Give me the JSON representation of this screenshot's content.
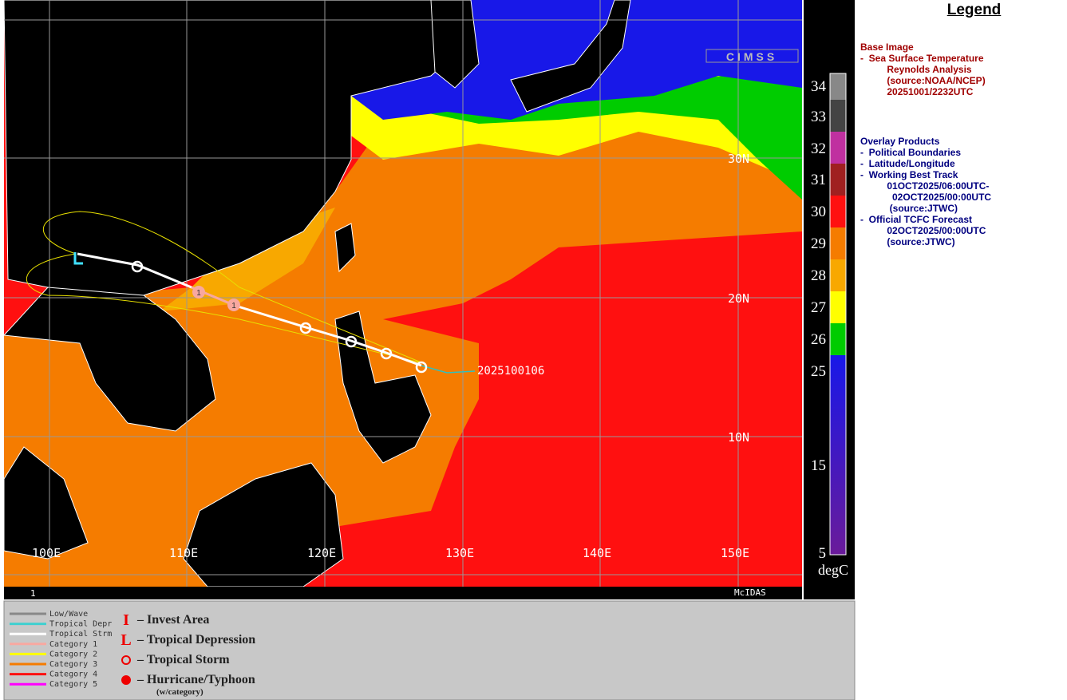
{
  "map": {
    "lat_labels": [
      "30N",
      "20N",
      "10N"
    ],
    "lon_labels": [
      "100E",
      "110E",
      "120E",
      "130E",
      "140E",
      "150E"
    ],
    "logo": "CIMSS",
    "track_labels": [
      "1",
      "1"
    ],
    "storm_label": "2025100106",
    "footer_left": "1",
    "footer_right": "McIDAS"
  },
  "colorbar": {
    "ticks": [
      34,
      33,
      32,
      31,
      30,
      29,
      28,
      27,
      26,
      25,
      15,
      5
    ],
    "unit": "degC"
  },
  "legend": {
    "title": "Legend",
    "base_heading": "Base Image",
    "base_lines": [
      "-  Sea Surface Temperature",
      "          Reynolds Analysis",
      "          (source:NOAA/NCEP)",
      "          20251001/2232UTC"
    ],
    "overlay_heading": "Overlay Products",
    "overlay_lines": [
      "-  Political Boundaries",
      "-  Latitude/Longitude",
      "-  Working Best Track",
      "          01OCT2025/06:00UTC-",
      "            02OCT2025/00:00UTC",
      "           (source:JTWC)",
      "-  Official TCFC Forecast",
      "          02OCT2025/00:00UTC",
      "          (source:JTWC)"
    ]
  },
  "key": {
    "tracks": [
      "Low/Wave",
      "Tropical Depr",
      "Tropical Strm",
      "Category 1",
      "Category 2",
      "Category 3",
      "Category 4",
      "Category 5"
    ],
    "symbols": [
      {
        "symbol": "I",
        "label": "– Invest Area"
      },
      {
        "symbol": "L",
        "label": "– Tropical Depression"
      },
      {
        "label": "– Tropical Storm"
      },
      {
        "label": "– Hurricane/Typhoon"
      }
    ],
    "note": "(w/category)"
  }
}
